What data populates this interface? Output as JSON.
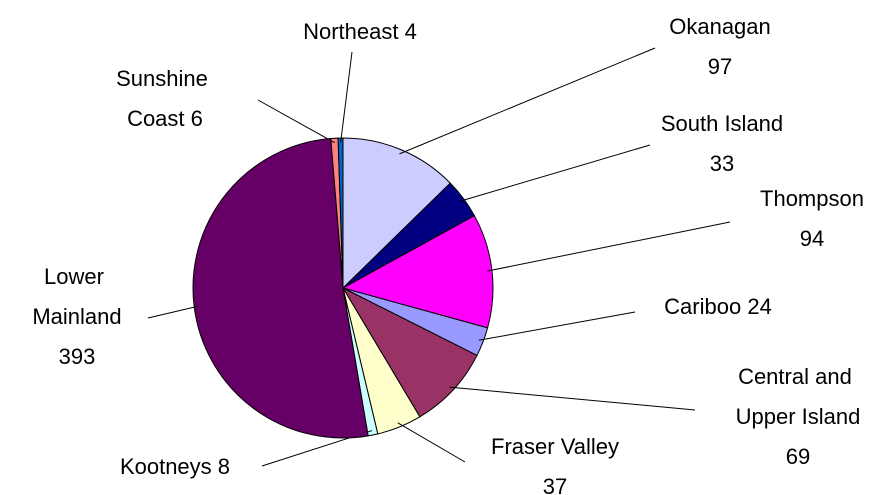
{
  "chart_data": {
    "type": "pie",
    "categories": [
      "Sunshine Coast",
      "Northeast",
      "Okanagan",
      "South Island",
      "Thompson",
      "Cariboo",
      "Central and Upper Island",
      "Fraser Valley",
      "Kootneys",
      "Lower Mainland"
    ],
    "values": [
      6,
      4,
      97,
      33,
      94,
      24,
      69,
      37,
      8,
      393
    ],
    "colors": [
      "#ff8080",
      "#0066cc",
      "#ccccff",
      "#000080",
      "#ff00ff",
      "#9999ff",
      "#993366",
      "#ffffcc",
      "#ccffff",
      "#660066"
    ]
  }
}
